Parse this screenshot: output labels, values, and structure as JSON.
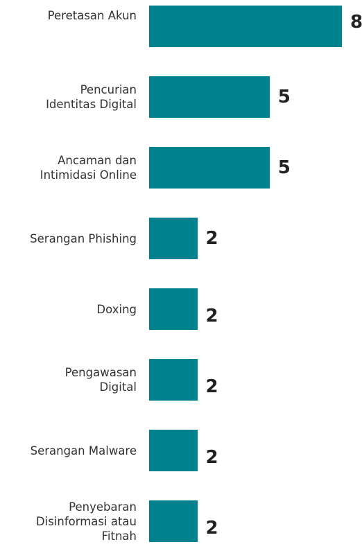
{
  "chart_data": {
    "type": "bar",
    "orientation": "horizontal",
    "categories": [
      "Peretasan Akun",
      "Pencurian\nIdentitas Digital",
      "Ancaman dan\nIntimidasi Online",
      "Serangan Phishing",
      "Doxing",
      "Pengawasan\nDigital",
      "Serangan Malware",
      "Penyebaran\nDisinformasi atau\nFitnah"
    ],
    "values": [
      8,
      5,
      5,
      2,
      2,
      2,
      2,
      2
    ],
    "color": "#00838f"
  }
}
